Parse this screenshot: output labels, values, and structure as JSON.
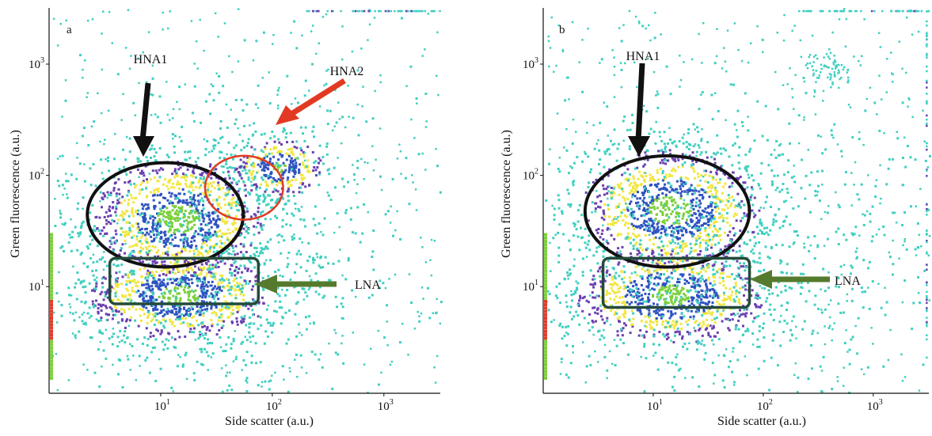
{
  "chart_data": [
    {
      "type": "scatter",
      "panel_label": "a",
      "xlabel": "Side scatter (a.u.)",
      "ylabel": "Green fluorescence (a.u.)",
      "x_scale": "log",
      "y_scale": "log",
      "xlim": [
        1,
        3200
      ],
      "ylim": [
        1.1,
        3200
      ],
      "x_ticks": [
        {
          "value": 10,
          "base": "10",
          "exp": "1"
        },
        {
          "value": 100,
          "base": "10",
          "exp": "2"
        },
        {
          "value": 1000,
          "base": "10",
          "exp": "3"
        }
      ],
      "y_ticks": [
        {
          "value": 10,
          "base": "10",
          "exp": "1"
        },
        {
          "value": 100,
          "base": "10",
          "exp": "2"
        },
        {
          "value": 1000,
          "base": "10",
          "exp": "3"
        }
      ],
      "density_colors": {
        "lowest": "#40cfc0",
        "low": "#6a3fb0",
        "mid": "#f2e640",
        "high": "#2e52c0",
        "highest": "#7ccf3a",
        "edge": "#e03b2a"
      },
      "populations": [
        {
          "label": "HNA1",
          "shape": "ellipse",
          "x_range": [
            2.2,
            55
          ],
          "y_range": [
            15,
            130
          ],
          "outline_color": "#111111",
          "arrow_color": "#111111"
        },
        {
          "label": "HNA2",
          "shape": "circle",
          "x_range": [
            25,
            125
          ],
          "y_range": [
            40,
            150
          ],
          "outline_color": "#e23a22",
          "arrow_color": "#e23a22"
        },
        {
          "label": "LNA",
          "shape": "rectangle",
          "x_range": [
            3.5,
            75
          ],
          "y_range": [
            7,
            18
          ],
          "outline_color": "#244a3a",
          "arrow_color": "#557a2e"
        }
      ]
    },
    {
      "type": "scatter",
      "panel_label": "b",
      "xlabel": "Side scatter (a.u.)",
      "ylabel": "Green fluorescence (a.u.)",
      "x_scale": "log",
      "y_scale": "log",
      "xlim": [
        1,
        3200
      ],
      "ylim": [
        1.1,
        3200
      ],
      "x_ticks": [
        {
          "value": 10,
          "base": "10",
          "exp": "1"
        },
        {
          "value": 100,
          "base": "10",
          "exp": "2"
        },
        {
          "value": 1000,
          "base": "10",
          "exp": "3"
        }
      ],
      "y_ticks": [
        {
          "value": 10,
          "base": "10",
          "exp": "1"
        },
        {
          "value": 100,
          "base": "10",
          "exp": "2"
        },
        {
          "value": 1000,
          "base": "10",
          "exp": "3"
        }
      ],
      "density_colors": {
        "lowest": "#40cfc0",
        "low": "#6a3fb0",
        "mid": "#f2e640",
        "high": "#2e52c0",
        "highest": "#7ccf3a",
        "edge": "#e03b2a"
      },
      "populations": [
        {
          "label": "HNA1",
          "shape": "ellipse",
          "x_range": [
            2.4,
            75
          ],
          "y_range": [
            15,
            150
          ],
          "outline_color": "#111111",
          "arrow_color": "#111111"
        },
        {
          "label": "LNA",
          "shape": "rectangle",
          "x_range": [
            3.5,
            75
          ],
          "y_range": [
            6.5,
            18
          ],
          "outline_color": "#244a3a",
          "arrow_color": "#557a2e"
        }
      ]
    }
  ]
}
